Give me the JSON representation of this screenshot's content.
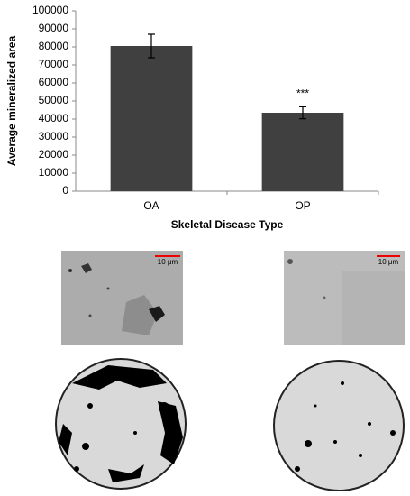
{
  "chart_data": {
    "type": "bar",
    "categories": [
      "OA",
      "OP"
    ],
    "values": [
      80500,
      43500
    ],
    "errors": [
      6500,
      3300
    ],
    "color": "#404040",
    "ylim": [
      0,
      100000
    ],
    "yticks": [
      0,
      10000,
      20000,
      30000,
      40000,
      50000,
      60000,
      70000,
      80000,
      90000,
      100000
    ],
    "y_label": "Average mineralized area",
    "x_label": "Skeletal Disease Type",
    "annotations": [
      "",
      "***"
    ]
  },
  "scale_bars": [
    "10 μm",
    "10 μm"
  ]
}
